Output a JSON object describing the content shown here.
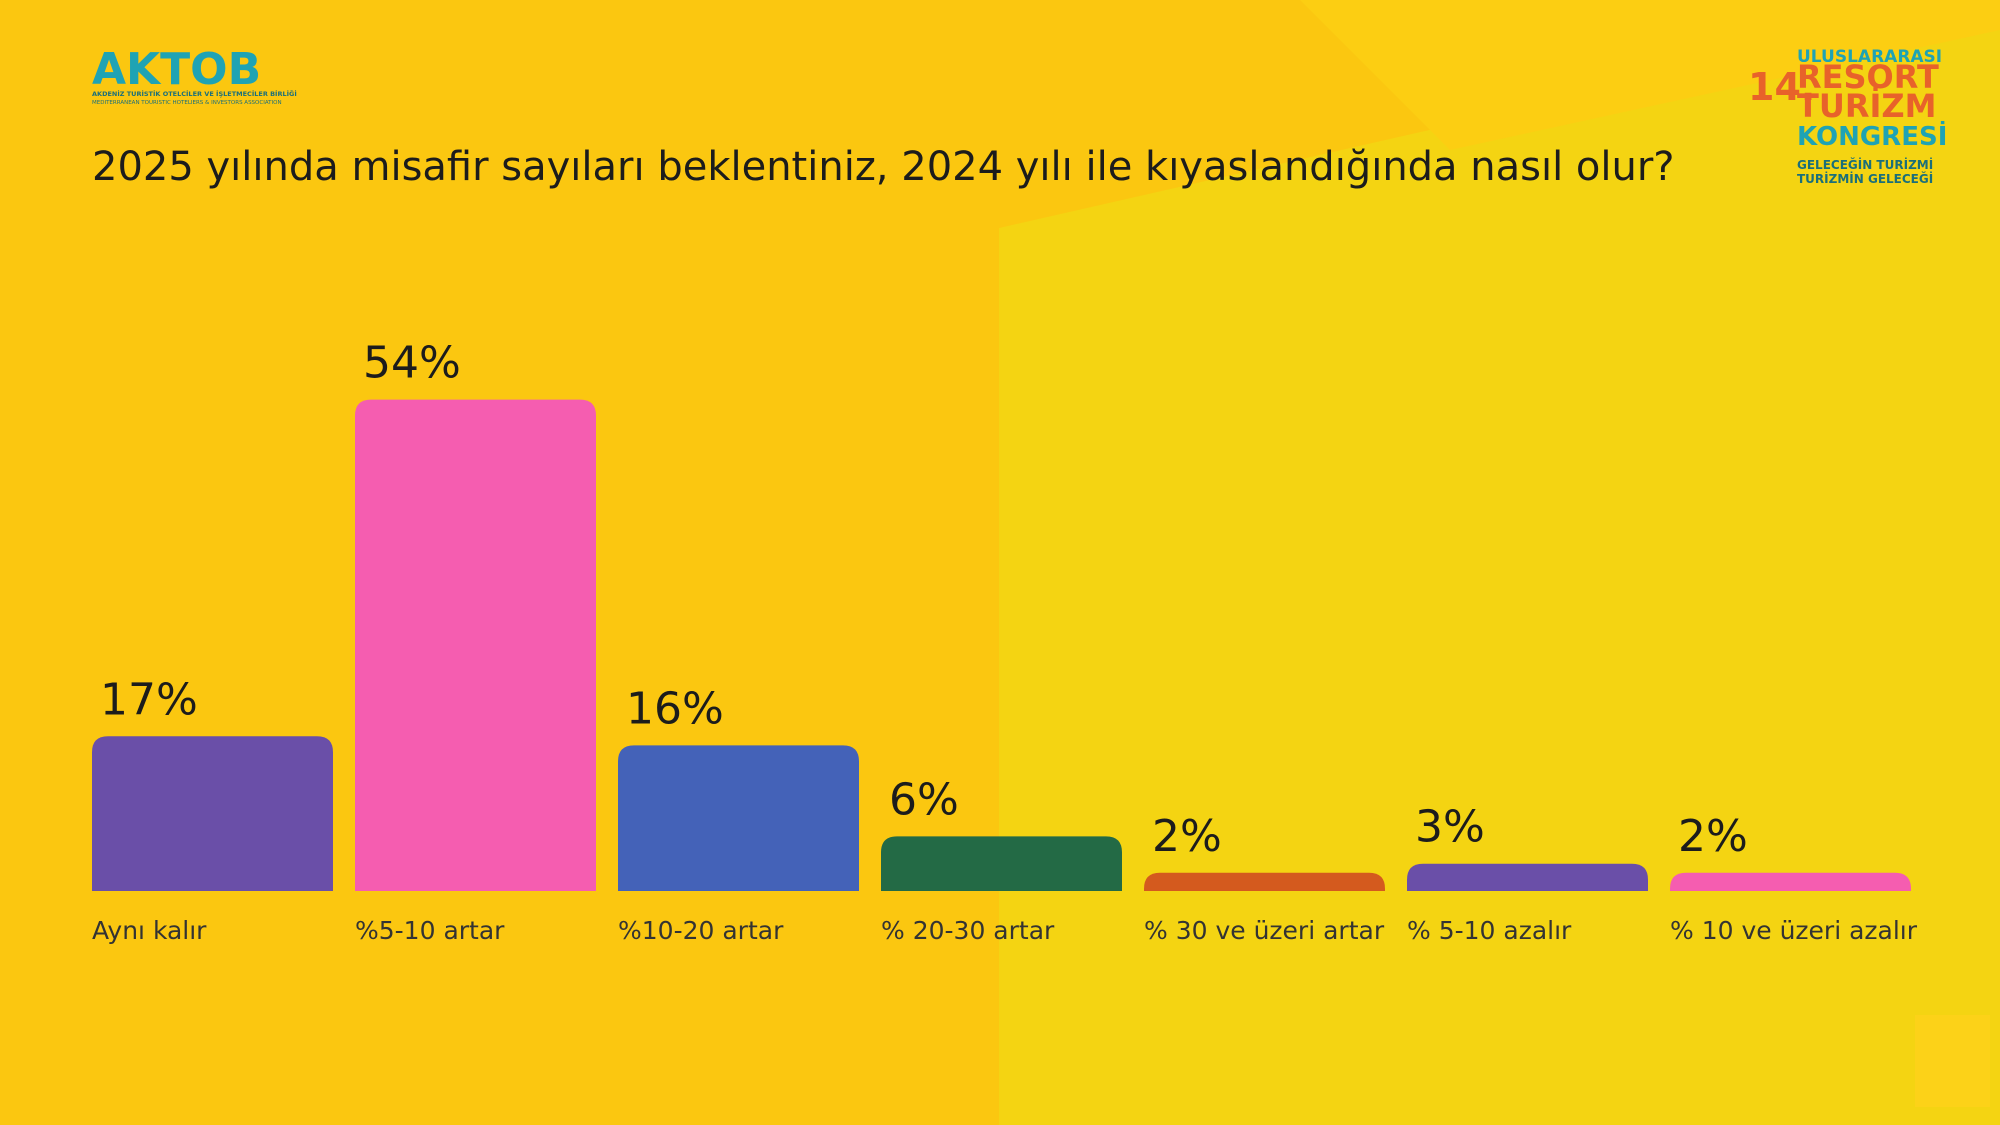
{
  "branding": {
    "left_logo": "AKTOB",
    "left_logo_sub1": "AKDENİZ TURİSTİK OTELCİLER VE İŞLETMECİLER BİRLİĞİ",
    "left_logo_sub2": "MEDITERRANEAN TOURISTIC HOTELIERS & INVESTORS ASSOCIATION",
    "right_logo_top": "ULUSLARARASI",
    "right_logo_number": "14.",
    "right_logo_line1": "RESORT",
    "right_logo_line2": "TURİZM",
    "right_logo_line3": "KONGRESİ",
    "right_logo_tag1": "GELECEĞİN TURİZMİ",
    "right_logo_tag2": "TURİZMİN GELECEĞİ"
  },
  "chart_data": {
    "type": "bar",
    "title": "2025 yılında misafir sayıları beklentiniz, 2024 yılı ile kıyaslandığında nasıl olur?",
    "categories": [
      "Aynı kalır",
      "%5-10 artar",
      "%10-20 artar",
      "% 20-30 artar",
      "% 30 ve üzeri artar",
      "% 5-10 azalır",
      "% 10 ve üzeri azalır"
    ],
    "values": [
      17,
      54,
      16,
      6,
      2,
      3,
      2
    ],
    "value_labels": [
      "17%",
      "54%",
      "16%",
      "6%",
      "2%",
      "3%",
      "2%"
    ],
    "colors": [
      "#6a4fa8",
      "#f55db0",
      "#4462b8",
      "#236a45",
      "#d45a1e",
      "#6a4fa8",
      "#f55db0"
    ]
  }
}
